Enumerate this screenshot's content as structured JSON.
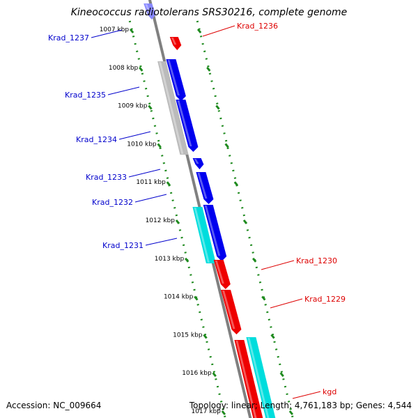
{
  "title": "Kineococcus radiotolerans SRS30216, complete genome",
  "accession": "Accession: NC_009664",
  "summary": "Topology: linear; Length: 4,761,183 bp; Genes: 4,544",
  "colors": {
    "backbone": "#808080",
    "ruler": "#1e8a1e",
    "forward_label": "#0000cc",
    "reverse_label": "#dd0000",
    "blue": "#0000ee",
    "red": "#ee0000",
    "cyan": "#00dddd",
    "gray": "#bbbbbb"
  },
  "ruler_ticks": [
    {
      "label": "1007 kbp"
    },
    {
      "label": "1008 kbp"
    },
    {
      "label": "1009 kbp"
    },
    {
      "label": "1010 kbp"
    },
    {
      "label": "1011 kbp"
    },
    {
      "label": "1012 kbp"
    },
    {
      "label": "1013 kbp"
    },
    {
      "label": "1014 kbp"
    },
    {
      "label": "1015 kbp"
    },
    {
      "label": "1016 kbp"
    },
    {
      "label": "1017 kbp"
    }
  ],
  "genes": [
    {
      "name": "Krad_1237",
      "strand": "forward"
    },
    {
      "name": "Krad_1236",
      "strand": "reverse"
    },
    {
      "name": "Krad_1235",
      "strand": "forward"
    },
    {
      "name": "Krad_1234",
      "strand": "forward"
    },
    {
      "name": "Krad_1233",
      "strand": "forward"
    },
    {
      "name": "Krad_1232",
      "strand": "forward"
    },
    {
      "name": "Krad_1231",
      "strand": "forward"
    },
    {
      "name": "Krad_1230",
      "strand": "reverse"
    },
    {
      "name": "Krad_1229",
      "strand": "reverse"
    },
    {
      "name": "kgd",
      "strand": "reverse"
    }
  ]
}
